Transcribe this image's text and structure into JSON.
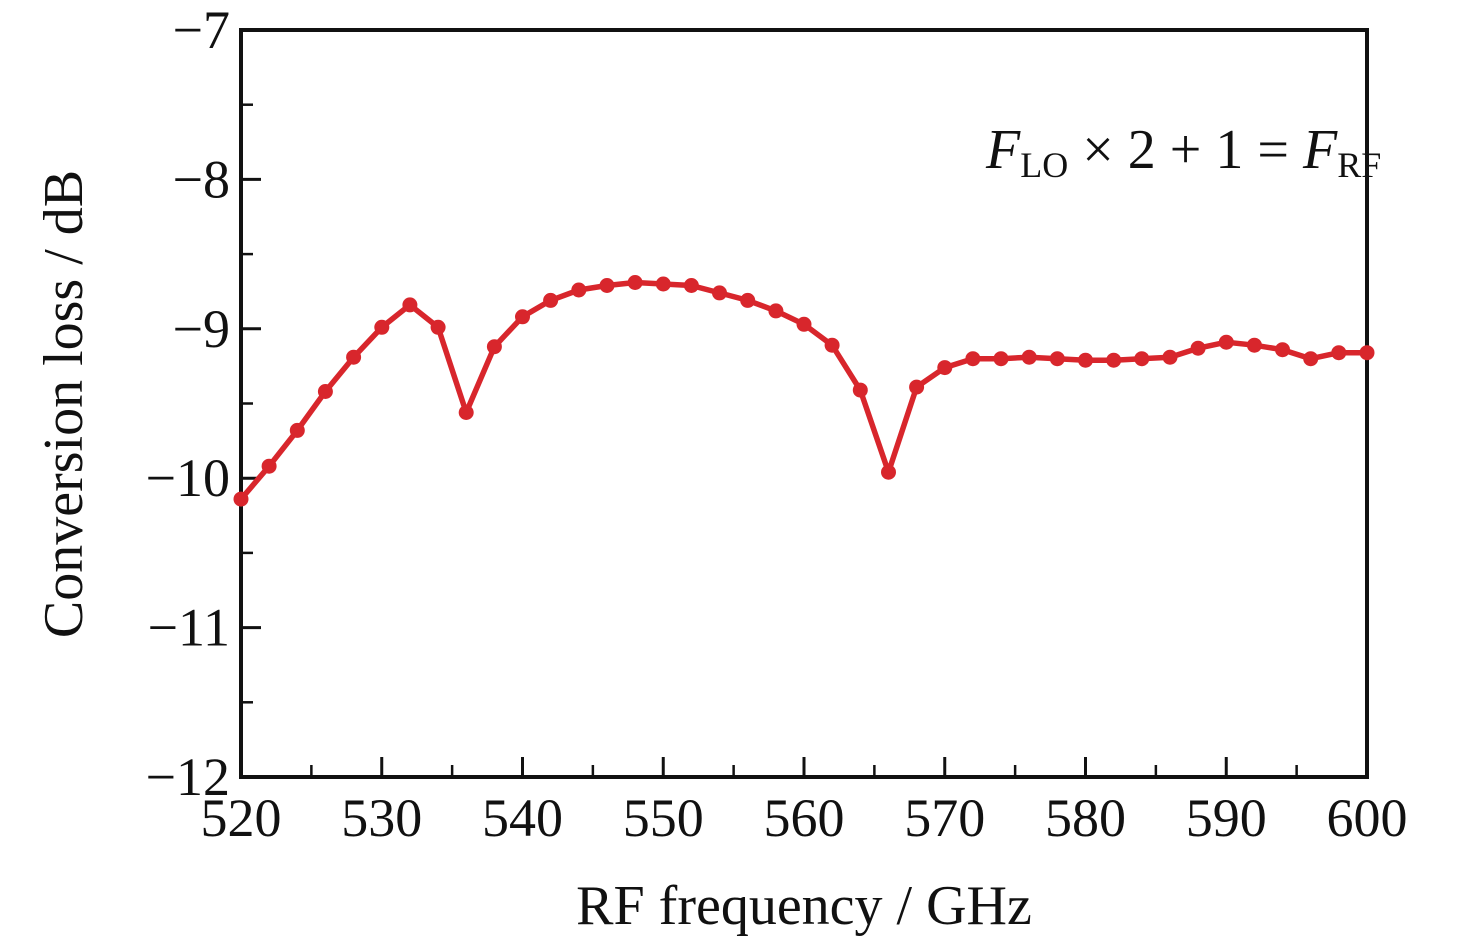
{
  "figure": {
    "background": "#ffffff",
    "axis_color": "#111111",
    "text_color": "#111111"
  },
  "chart_data": {
    "type": "line",
    "title": "",
    "xlabel": "RF frequency / GHz",
    "ylabel": "Conversion loss / dB",
    "xlim": [
      520,
      600
    ],
    "ylim": [
      -12,
      -7
    ],
    "grid": false,
    "legend_position": "none",
    "x_major_ticks": [
      520,
      530,
      540,
      550,
      560,
      570,
      580,
      590,
      600
    ],
    "x_minor_ticks": [
      525,
      535,
      545,
      555,
      565,
      575,
      585,
      595
    ],
    "y_major_ticks": [
      -7,
      -8,
      -9,
      -10,
      -11,
      -12
    ],
    "y_minor_ticks": [
      -7.5,
      -8.5,
      -9.5,
      -10.5,
      -11.5
    ],
    "x_tick_labels": [
      "520",
      "530",
      "540",
      "550",
      "560",
      "570",
      "580",
      "590",
      "600"
    ],
    "y_tick_labels": [
      "−7",
      "−8",
      "−9",
      "−10",
      "−11",
      "−12"
    ],
    "series": [
      {
        "name": "conversion-loss",
        "color": "#d8262c",
        "marker": "circle",
        "line_width": 5.5,
        "marker_radius": 7.5,
        "x": [
          520,
          522,
          524,
          526,
          528,
          530,
          532,
          534,
          536,
          538,
          540,
          542,
          544,
          546,
          548,
          550,
          552,
          554,
          556,
          558,
          560,
          562,
          564,
          566,
          568,
          570,
          572,
          574,
          576,
          578,
          580,
          582,
          584,
          586,
          588,
          590,
          592,
          594,
          596,
          598,
          600
        ],
        "y": [
          -10.14,
          -9.92,
          -9.68,
          -9.42,
          -9.19,
          -8.99,
          -8.84,
          -8.99,
          -9.56,
          -9.12,
          -8.92,
          -8.81,
          -8.74,
          -8.71,
          -8.69,
          -8.7,
          -8.71,
          -8.76,
          -8.81,
          -8.88,
          -8.97,
          -9.11,
          -9.41,
          -9.96,
          -9.39,
          -9.26,
          -9.2,
          -9.2,
          -9.19,
          -9.2,
          -9.21,
          -9.21,
          -9.2,
          -9.19,
          -9.13,
          -9.09,
          -9.11,
          -9.14,
          -9.2,
          -9.16,
          -9.16
        ]
      }
    ],
    "annotation": {
      "text": "F_LO × 2 + 1 = F_RF",
      "parts": [
        {
          "t": "F",
          "kind": "var"
        },
        {
          "t": "LO",
          "kind": "sub"
        },
        {
          "t": " × 2 + 1 = ",
          "kind": "op"
        },
        {
          "t": "F",
          "kind": "var"
        },
        {
          "t": "RF",
          "kind": "sub"
        }
      ]
    }
  }
}
